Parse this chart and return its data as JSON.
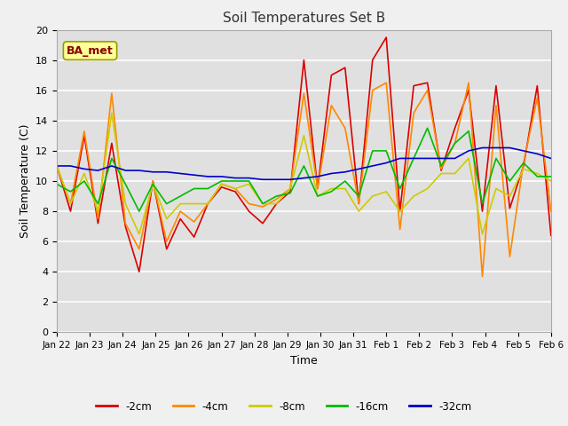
{
  "title": "Soil Temperatures Set B",
  "xlabel": "Time",
  "ylabel": "Soil Temperature (C)",
  "ylim": [
    0,
    20
  ],
  "fig_facecolor": "#f0f0f0",
  "plot_bg_color": "#e0e0e0",
  "annotation_text": "BA_met",
  "annotation_color": "#8b0000",
  "annotation_bg": "#ffff99",
  "annotation_edge": "#999900",
  "colors": {
    "-2cm": "#dd0000",
    "-4cm": "#ff8800",
    "-8cm": "#cccc00",
    "-16cm": "#00bb00",
    "-32cm": "#0000cc"
  },
  "x_labels": [
    "Jan 22",
    "Jan 23",
    "Jan 24",
    "Jan 25",
    "Jan 26",
    "Jan 27",
    "Jan 28",
    "Jan 29",
    "Jan 30",
    "Jan 31",
    "Feb 1",
    "Feb 2",
    "Feb 3",
    "Feb 4",
    "Feb 5",
    "Feb 6"
  ],
  "series": {
    "-2cm": [
      11.0,
      8.0,
      13.0,
      7.2,
      12.5,
      7.0,
      4.0,
      10.0,
      5.5,
      7.5,
      6.3,
      8.5,
      9.6,
      9.3,
      8.0,
      7.2,
      8.5,
      9.3,
      18.0,
      9.5,
      17.0,
      17.5,
      8.5,
      18.0,
      19.5,
      8.0,
      16.3,
      16.5,
      10.7,
      13.5,
      16.0,
      8.0,
      16.3,
      8.2,
      11.0,
      16.3,
      6.4
    ],
    "-4cm": [
      11.0,
      8.5,
      13.3,
      7.5,
      15.8,
      7.2,
      5.5,
      10.0,
      6.0,
      8.0,
      7.3,
      8.5,
      9.8,
      9.5,
      8.5,
      8.3,
      8.8,
      9.5,
      15.8,
      9.5,
      15.0,
      13.5,
      8.5,
      16.0,
      16.5,
      6.8,
      14.5,
      16.0,
      10.8,
      12.5,
      16.5,
      3.7,
      15.0,
      5.0,
      11.2,
      15.5,
      8.0
    ],
    "-8cm": [
      11.0,
      8.5,
      10.5,
      8.0,
      14.5,
      8.5,
      6.5,
      9.8,
      7.5,
      8.5,
      8.5,
      8.5,
      9.8,
      9.5,
      9.8,
      8.5,
      8.5,
      9.5,
      13.0,
      9.0,
      9.5,
      9.5,
      8.0,
      9.0,
      9.3,
      8.0,
      9.0,
      9.5,
      10.5,
      10.5,
      11.5,
      6.5,
      9.5,
      9.0,
      10.8,
      10.5,
      10.0
    ],
    "-16cm": [
      9.8,
      9.3,
      10.0,
      8.5,
      11.5,
      9.8,
      8.0,
      9.8,
      8.5,
      9.0,
      9.5,
      9.5,
      10.0,
      10.0,
      10.0,
      8.5,
      9.0,
      9.2,
      11.0,
      9.0,
      9.3,
      10.0,
      9.0,
      12.0,
      12.0,
      9.5,
      11.5,
      13.5,
      11.0,
      12.5,
      13.3,
      8.5,
      11.5,
      10.0,
      11.2,
      10.3,
      10.3
    ],
    "-32cm": [
      11.0,
      11.0,
      10.8,
      10.7,
      11.0,
      10.7,
      10.7,
      10.6,
      10.6,
      10.5,
      10.4,
      10.3,
      10.3,
      10.2,
      10.2,
      10.1,
      10.1,
      10.1,
      10.2,
      10.3,
      10.5,
      10.6,
      10.8,
      11.0,
      11.2,
      11.5,
      11.5,
      11.5,
      11.5,
      11.5,
      12.0,
      12.2,
      12.2,
      12.2,
      12.0,
      11.8,
      11.5
    ]
  }
}
